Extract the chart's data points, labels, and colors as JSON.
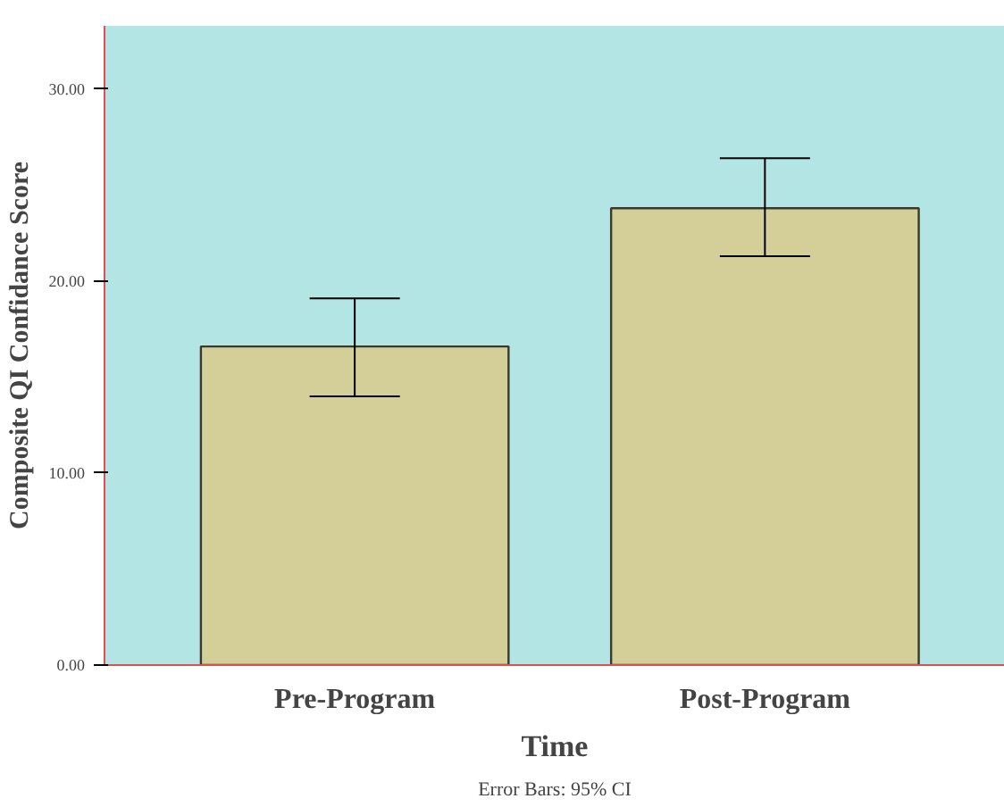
{
  "chart_data": {
    "type": "bar",
    "xlabel": "Time",
    "ylabel": "Composite QI Confidance Score",
    "categories": [
      "Pre-Program",
      "Post-Program"
    ],
    "values": [
      16.6,
      23.8
    ],
    "errors": [
      [
        14.0,
        19.1
      ],
      [
        21.3,
        26.4
      ]
    ],
    "color": "#d4cf98",
    "ylim": [
      0,
      33.3
    ],
    "yticks": [
      {
        "value": 0,
        "label": "0.00"
      },
      {
        "value": 10,
        "label": "10.00"
      },
      {
        "value": 20,
        "label": "20.00"
      },
      {
        "value": 30,
        "label": "30.00"
      }
    ],
    "grid": false,
    "annotations": [
      "Error Bars: 95% CI"
    ]
  }
}
